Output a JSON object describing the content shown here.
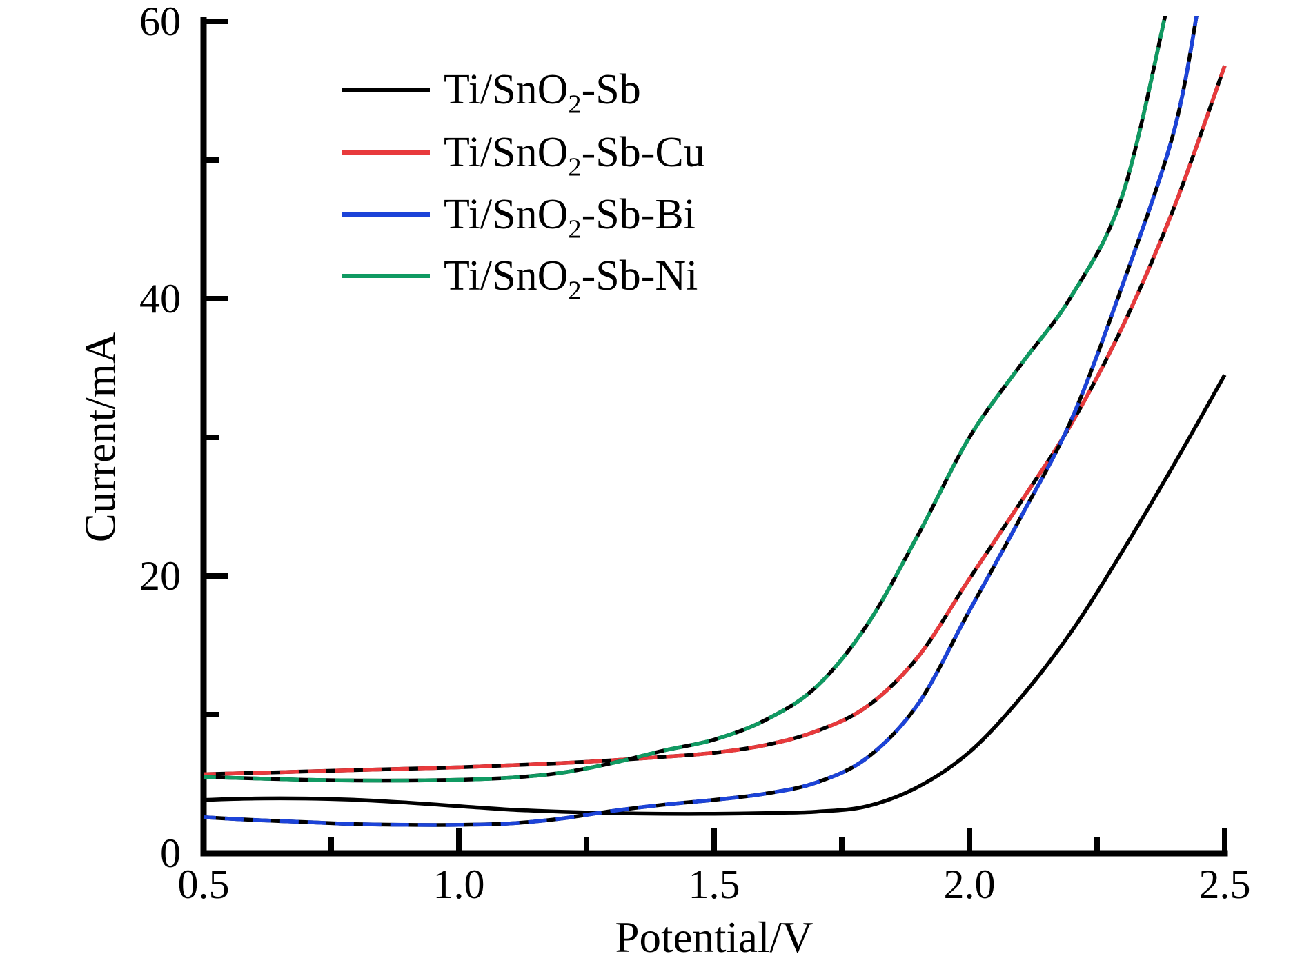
{
  "figure": {
    "background": "#ffffff"
  },
  "axes": {
    "x": {
      "label": "Potential/V",
      "min": 0.5,
      "max": 2.5,
      "major_ticks": [
        0.5,
        1.0,
        1.5,
        2.0,
        2.5
      ],
      "minor_ticks": [
        0.75,
        1.25,
        1.75,
        2.25
      ],
      "tick_labels": [
        "0.5",
        "1.0",
        "1.5",
        "2.0",
        "2.5"
      ]
    },
    "y": {
      "label": "Current/mA",
      "min": 0,
      "max": 60,
      "major_ticks": [
        0,
        20,
        40,
        60
      ],
      "minor_ticks": [
        10,
        30,
        50
      ],
      "tick_labels": [
        "0",
        "20",
        "40",
        "60"
      ]
    }
  },
  "legend": [
    {
      "prefix": "Ti/SnO",
      "sub": "2",
      "suffix": "-Sb",
      "color": "#000000"
    },
    {
      "prefix": "Ti/SnO",
      "sub": "2",
      "suffix": "-Sb-Cu",
      "color": "#e83a3c"
    },
    {
      "prefix": "Ti/SnO",
      "sub": "2",
      "suffix": "-Sb-Bi",
      "color": "#1c43d8"
    },
    {
      "prefix": "Ti/SnO",
      "sub": "2",
      "suffix": "-Sb-Ni",
      "color": "#109a62"
    }
  ],
  "chart_data": {
    "type": "line",
    "title": "",
    "xlabel": "Potential/V",
    "ylabel": "Current/mA",
    "xlim": [
      0.5,
      2.5
    ],
    "ylim": [
      0,
      60
    ],
    "grid": false,
    "legend_position": "upper-left-inside",
    "series": [
      {
        "name": "Ti/SnO2-Sb",
        "color": "#000000",
        "dashed_black_overlay": false,
        "points": [
          [
            0.5,
            3.85
          ],
          [
            0.6,
            3.95
          ],
          [
            0.7,
            3.95
          ],
          [
            0.8,
            3.85
          ],
          [
            0.9,
            3.65
          ],
          [
            1.0,
            3.4
          ],
          [
            1.1,
            3.15
          ],
          [
            1.2,
            3.0
          ],
          [
            1.3,
            2.9
          ],
          [
            1.4,
            2.85
          ],
          [
            1.5,
            2.85
          ],
          [
            1.6,
            2.9
          ],
          [
            1.7,
            3.0
          ],
          [
            1.8,
            3.4
          ],
          [
            1.9,
            4.8
          ],
          [
            2.0,
            7.3
          ],
          [
            2.1,
            11.2
          ],
          [
            2.2,
            16.0
          ],
          [
            2.3,
            21.8
          ],
          [
            2.4,
            28.0
          ],
          [
            2.5,
            34.5
          ]
        ]
      },
      {
        "name": "Ti/SnO2-Sb-Cu",
        "color": "#e83a3c",
        "dashed_black_overlay": true,
        "points": [
          [
            0.5,
            5.7
          ],
          [
            0.6,
            5.8
          ],
          [
            0.7,
            5.9
          ],
          [
            0.8,
            6.0
          ],
          [
            0.9,
            6.1
          ],
          [
            1.0,
            6.2
          ],
          [
            1.1,
            6.35
          ],
          [
            1.2,
            6.5
          ],
          [
            1.3,
            6.7
          ],
          [
            1.4,
            6.95
          ],
          [
            1.5,
            7.25
          ],
          [
            1.6,
            7.8
          ],
          [
            1.7,
            8.8
          ],
          [
            1.8,
            10.6
          ],
          [
            1.9,
            14.2
          ],
          [
            2.0,
            19.8
          ],
          [
            2.1,
            25.3
          ],
          [
            2.2,
            31.0
          ],
          [
            2.3,
            38.0
          ],
          [
            2.4,
            46.5
          ],
          [
            2.5,
            56.8
          ]
        ]
      },
      {
        "name": "Ti/SnO2-Sb-Bi",
        "color": "#1c43d8",
        "dashed_black_overlay": true,
        "points": [
          [
            0.5,
            2.6
          ],
          [
            0.6,
            2.4
          ],
          [
            0.7,
            2.25
          ],
          [
            0.8,
            2.1
          ],
          [
            0.9,
            2.05
          ],
          [
            1.0,
            2.05
          ],
          [
            1.1,
            2.15
          ],
          [
            1.2,
            2.5
          ],
          [
            1.3,
            3.05
          ],
          [
            1.4,
            3.5
          ],
          [
            1.5,
            3.85
          ],
          [
            1.6,
            4.3
          ],
          [
            1.7,
            5.1
          ],
          [
            1.8,
            6.9
          ],
          [
            1.9,
            10.8
          ],
          [
            2.0,
            17.5
          ],
          [
            2.1,
            24.2
          ],
          [
            2.2,
            31.3
          ],
          [
            2.3,
            41.0
          ],
          [
            2.4,
            52.0
          ],
          [
            2.45,
            61.5
          ]
        ]
      },
      {
        "name": "Ti/SnO2-Sb-Ni",
        "color": "#109a62",
        "dashed_black_overlay": true,
        "points": [
          [
            0.5,
            5.5
          ],
          [
            0.6,
            5.4
          ],
          [
            0.7,
            5.3
          ],
          [
            0.8,
            5.25
          ],
          [
            0.9,
            5.25
          ],
          [
            1.0,
            5.3
          ],
          [
            1.1,
            5.45
          ],
          [
            1.2,
            5.8
          ],
          [
            1.3,
            6.5
          ],
          [
            1.4,
            7.4
          ],
          [
            1.5,
            8.2
          ],
          [
            1.6,
            9.6
          ],
          [
            1.7,
            12.0
          ],
          [
            1.8,
            16.5
          ],
          [
            1.9,
            23.0
          ],
          [
            2.0,
            30.0
          ],
          [
            2.1,
            35.2
          ],
          [
            2.2,
            40.2
          ],
          [
            2.3,
            47.5
          ],
          [
            2.39,
            61.5
          ]
        ]
      }
    ]
  }
}
